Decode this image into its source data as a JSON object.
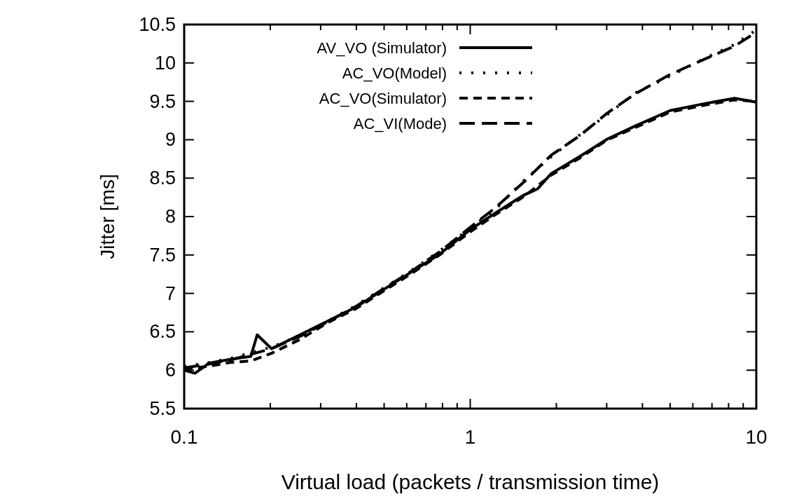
{
  "chart_data": {
    "type": "line",
    "xlabel": "Virtual load (packets / transmission time)",
    "ylabel": "Jitter [ms]",
    "log": "x",
    "grid": false,
    "legend": "top",
    "xlim": [
      0.1,
      10
    ],
    "ylim": [
      5.5,
      10.5
    ],
    "xticks": [
      0.1,
      {
        "value": 0.2,
        "label": null
      },
      {
        "value": 0.3,
        "label": null
      },
      {
        "value": 0.4,
        "label": null
      },
      {
        "value": 0.5,
        "label": null
      },
      {
        "value": 0.6,
        "label": null
      },
      {
        "value": 0.7,
        "label": null
      },
      {
        "value": 0.8,
        "label": null
      },
      {
        "value": 0.9,
        "label": null
      },
      1,
      {
        "value": 2,
        "label": null
      },
      {
        "value": 3,
        "label": null
      },
      {
        "value": 4,
        "label": null
      },
      {
        "value": 5,
        "label": null
      },
      {
        "value": 6,
        "label": null
      },
      {
        "value": 7,
        "label": null
      },
      {
        "value": 8,
        "label": null
      },
      {
        "value": 9,
        "label": null
      },
      10
    ],
    "yticks": [
      5.5,
      6,
      6.5,
      7,
      7.5,
      8,
      8.5,
      9,
      9.5,
      10,
      10.5
    ],
    "series": [
      {
        "name": "AV_VO (Simulator)",
        "color": "#000000",
        "line_style": "solid",
        "x": [
          0.1,
          0.109,
          0.122,
          0.144,
          0.171,
          0.18,
          0.202,
          0.254,
          0.318,
          0.398,
          0.498,
          0.624,
          0.781,
          1,
          1.23,
          1.54,
          1.72,
          1.92,
          2.41,
          3.02,
          3.78,
          5,
          6.6,
          8.4,
          10
        ],
        "values": [
          6.0,
          5.96,
          6.09,
          6.14,
          6.18,
          6.46,
          6.28,
          6.46,
          6.64,
          6.82,
          7.05,
          7.28,
          7.51,
          7.83,
          8.05,
          8.28,
          8.36,
          8.56,
          8.78,
          9.01,
          9.18,
          9.38,
          9.47,
          9.54,
          9.49
        ]
      },
      {
        "name": "AC_VO(Model)",
        "color": "#000000",
        "line_style": "dotted",
        "x": [
          0.1,
          0.122,
          0.144,
          0.202,
          0.254,
          0.318,
          0.398,
          0.498,
          0.624,
          0.781,
          1,
          1.23,
          1.54,
          1.92,
          2.41,
          3.02,
          3.78,
          5,
          6.6,
          8.4,
          10
        ],
        "values": [
          6.05,
          6.1,
          6.15,
          6.3,
          6.45,
          6.64,
          6.84,
          7.07,
          7.3,
          7.55,
          7.85,
          8.1,
          8.47,
          8.78,
          9.06,
          9.33,
          9.61,
          9.83,
          10.06,
          10.24,
          10.43
        ]
      },
      {
        "name": "AC_VO(Simulator)",
        "color": "#000000",
        "line_style": "dashed",
        "x": [
          0.1,
          0.122,
          0.144,
          0.171,
          0.202,
          0.254,
          0.318,
          0.398,
          0.498,
          0.624,
          0.781,
          1,
          1.23,
          1.54,
          1.92,
          2.41,
          3.02,
          3.78,
          5,
          6.6,
          8.4,
          10
        ],
        "values": [
          6.02,
          6.05,
          6.1,
          6.12,
          6.22,
          6.4,
          6.62,
          6.8,
          7.03,
          7.26,
          7.5,
          7.8,
          8.03,
          8.26,
          8.54,
          8.76,
          9.0,
          9.16,
          9.36,
          9.45,
          9.52,
          9.5
        ]
      },
      {
        "name": "AC_VI(Mode)",
        "color": "#000000",
        "line_style": "long-dashed",
        "x": [
          0.1,
          0.122,
          0.144,
          0.202,
          0.254,
          0.318,
          0.398,
          0.498,
          0.624,
          0.781,
          1,
          1.23,
          1.54,
          1.92,
          2.41,
          3.02,
          3.78,
          5,
          6.6,
          8.4,
          10
        ],
        "values": [
          6.03,
          6.08,
          6.13,
          6.28,
          6.44,
          6.63,
          6.83,
          7.06,
          7.29,
          7.54,
          7.86,
          8.12,
          8.45,
          8.8,
          9.05,
          9.35,
          9.6,
          9.85,
          10.05,
          10.22,
          10.4
        ]
      }
    ]
  }
}
